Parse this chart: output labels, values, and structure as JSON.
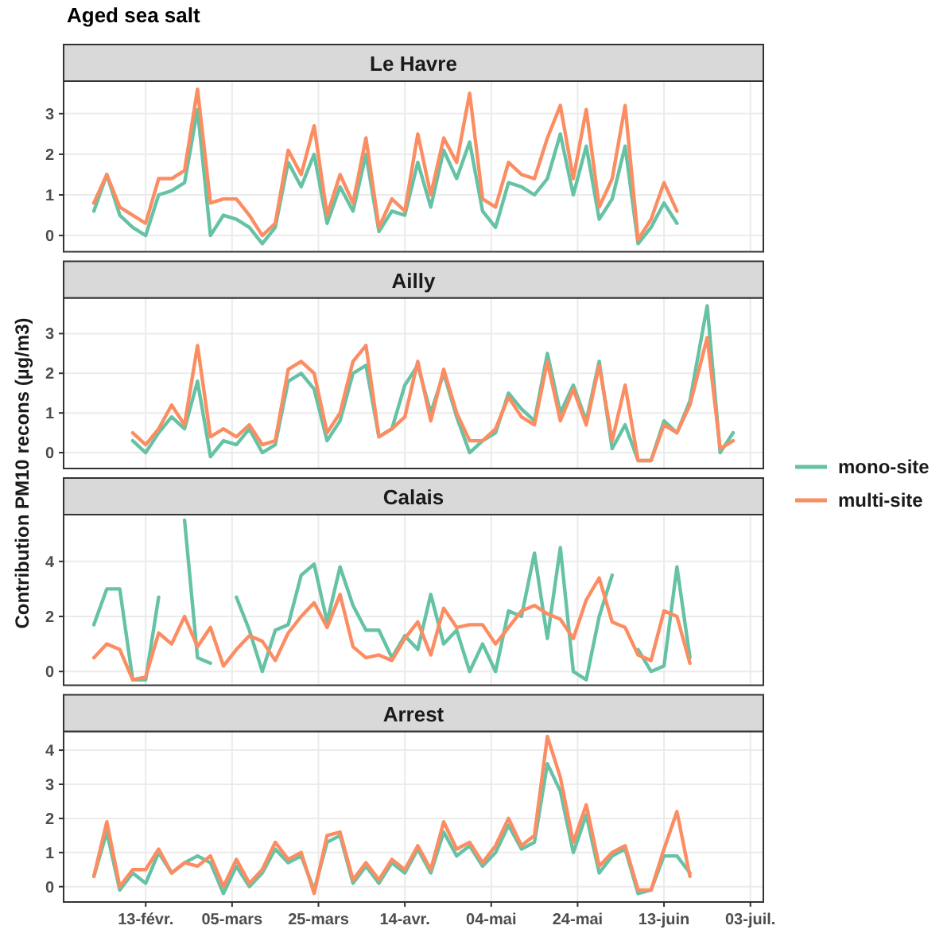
{
  "chart_data": [
    {
      "type": "line",
      "title": "Le Havre",
      "annotations": [
        "Aged sea salt"
      ],
      "tick_labels": "y",
      "grid": true,
      "x": [
        "--02-01",
        "--02-04",
        "--02-07",
        "--02-10",
        "--02-13",
        "--02-16",
        "--02-19",
        "--02-22",
        "--02-25",
        "--02-28",
        "--03-03",
        "--03-06",
        "--03-09",
        "--03-12",
        "--03-15",
        "--03-18",
        "--03-21",
        "--03-24",
        "--03-27",
        "--03-30",
        "--04-02",
        "--04-05",
        "--04-08",
        "--04-11",
        "--04-14",
        "--04-17",
        "--04-20",
        "--04-23",
        "--04-26",
        "--04-29",
        "--05-02",
        "--05-05",
        "--05-08",
        "--05-11",
        "--05-14",
        "--05-17",
        "--05-20",
        "--05-23",
        "--05-26",
        "--05-29",
        "--06-01",
        "--06-04",
        "--06-07",
        "--06-10",
        "--06-13",
        "--06-16"
      ],
      "xlim": [
        "--01-25",
        "--07-06"
      ],
      "xticks": [
        {
          "value": "--02-13",
          "label": null
        },
        {
          "value": "--03-05",
          "label": null
        },
        {
          "value": "--03-25",
          "label": null
        },
        {
          "value": "--04-14",
          "label": null
        },
        {
          "value": "--05-04",
          "label": null
        },
        {
          "value": "--05-24",
          "label": null
        },
        {
          "value": "--06-13",
          "label": null
        },
        {
          "value": "--07-03",
          "label": null
        }
      ],
      "ylim": [
        -0.4,
        3.8
      ],
      "yticks": [
        0,
        1,
        2,
        3
      ],
      "series": [
        {
          "color": "#66c2a5",
          "values": [
            0.6,
            1.5,
            0.5,
            0.2,
            0.0,
            1.0,
            1.1,
            1.3,
            3.1,
            0.0,
            0.5,
            0.4,
            0.2,
            -0.2,
            0.2,
            1.8,
            1.2,
            2.0,
            0.3,
            1.2,
            0.6,
            2.0,
            0.1,
            0.6,
            0.5,
            1.8,
            0.7,
            2.1,
            1.4,
            2.3,
            0.6,
            0.2,
            1.3,
            1.2,
            1.0,
            1.4,
            2.5,
            1.0,
            2.2,
            0.4,
            0.9,
            2.2,
            -0.2,
            0.2,
            0.8,
            0.3
          ]
        },
        {
          "color": "#fc8d62",
          "values": [
            0.8,
            1.5,
            0.7,
            0.5,
            0.3,
            1.4,
            1.4,
            1.6,
            3.6,
            0.8,
            0.9,
            0.9,
            0.5,
            0.0,
            0.3,
            2.1,
            1.5,
            2.7,
            0.5,
            1.5,
            0.8,
            2.4,
            0.2,
            0.9,
            0.6,
            2.5,
            1.0,
            2.4,
            1.8,
            3.5,
            0.9,
            0.7,
            1.8,
            1.5,
            1.4,
            2.4,
            3.2,
            1.4,
            3.1,
            0.7,
            1.4,
            3.2,
            -0.1,
            0.4,
            1.3,
            0.6
          ]
        }
      ]
    },
    {
      "type": "line",
      "title": "Ailly",
      "tick_labels": "y",
      "grid": true,
      "x": [
        "--02-10",
        "--02-13",
        "--02-16",
        "--02-19",
        "--02-22",
        "--02-25",
        "--02-28",
        "--03-03",
        "--03-06",
        "--03-09",
        "--03-12",
        "--03-15",
        "--03-18",
        "--03-21",
        "--03-24",
        "--03-27",
        "--03-30",
        "--04-02",
        "--04-05",
        "--04-08",
        "--04-11",
        "--04-14",
        "--04-17",
        "--04-20",
        "--04-23",
        "--04-26",
        "--04-29",
        "--05-02",
        "--05-05",
        "--05-08",
        "--05-11",
        "--05-14",
        "--05-17",
        "--05-20",
        "--05-23",
        "--05-26",
        "--05-29",
        "--06-01",
        "--06-04",
        "--06-07",
        "--06-10",
        "--06-13",
        "--06-16",
        "--06-19",
        "--06-23",
        "--06-26",
        "--06-29"
      ],
      "xlim": [
        "--01-25",
        "--07-06"
      ],
      "xticks": [
        {
          "value": "--02-13",
          "label": null
        },
        {
          "value": "--03-05",
          "label": null
        },
        {
          "value": "--03-25",
          "label": null
        },
        {
          "value": "--04-14",
          "label": null
        },
        {
          "value": "--05-04",
          "label": null
        },
        {
          "value": "--05-24",
          "label": null
        },
        {
          "value": "--06-13",
          "label": null
        },
        {
          "value": "--07-03",
          "label": null
        }
      ],
      "ylim": [
        -0.4,
        3.9
      ],
      "yticks": [
        0,
        1,
        2,
        3
      ],
      "series": [
        {
          "color": "#66c2a5",
          "values": [
            0.3,
            0.0,
            0.5,
            0.9,
            0.6,
            1.8,
            -0.1,
            0.3,
            0.2,
            0.6,
            0.0,
            0.2,
            1.8,
            2.0,
            1.6,
            0.3,
            0.8,
            2.0,
            2.2,
            0.4,
            0.6,
            1.7,
            2.2,
            1.0,
            2.0,
            0.9,
            0.0,
            0.3,
            0.5,
            1.5,
            1.1,
            0.8,
            2.5,
            1.0,
            1.7,
            0.8,
            2.3,
            0.1,
            0.7,
            -0.2,
            -0.2,
            0.8,
            0.5,
            1.3,
            3.7,
            0.0,
            0.5
          ]
        },
        {
          "color": "#fc8d62",
          "values": [
            0.5,
            0.2,
            0.6,
            1.2,
            0.7,
            2.7,
            0.4,
            0.6,
            0.4,
            0.7,
            0.2,
            0.3,
            2.1,
            2.3,
            2.0,
            0.5,
            1.0,
            2.3,
            2.7,
            0.4,
            0.6,
            0.9,
            2.3,
            0.8,
            2.1,
            1.0,
            0.3,
            0.3,
            0.6,
            1.4,
            0.9,
            0.7,
            2.3,
            0.8,
            1.6,
            0.7,
            2.2,
            0.3,
            1.7,
            -0.2,
            -0.2,
            0.7,
            0.5,
            1.2,
            2.9,
            0.1,
            0.3
          ]
        }
      ]
    },
    {
      "type": "line",
      "title": "Calais",
      "ylabel": "Contribution PM10 recons (µg/m3)",
      "tick_labels": "y",
      "grid": true,
      "legend": "right",
      "x": [
        "--02-01",
        "--02-04",
        "--02-07",
        "--02-10",
        "--02-13",
        "--02-16",
        "--02-19",
        "--02-22",
        "--02-25",
        "--02-28",
        "--03-03",
        "--03-06",
        "--03-09",
        "--03-12",
        "--03-15",
        "--03-18",
        "--03-21",
        "--03-24",
        "--03-27",
        "--03-30",
        "--04-02",
        "--04-05",
        "--04-08",
        "--04-11",
        "--04-14",
        "--04-17",
        "--04-20",
        "--04-23",
        "--04-26",
        "--04-29",
        "--05-02",
        "--05-05",
        "--05-08",
        "--05-11",
        "--05-14",
        "--05-17",
        "--05-20",
        "--05-23",
        "--05-26",
        "--05-29",
        "--06-01",
        "--06-04",
        "--06-07",
        "--06-10",
        "--06-13",
        "--06-16",
        "--06-19"
      ],
      "xlim": [
        "--01-25",
        "--07-06"
      ],
      "xticks": [
        {
          "value": "--02-13",
          "label": null
        },
        {
          "value": "--03-05",
          "label": null
        },
        {
          "value": "--03-25",
          "label": null
        },
        {
          "value": "--04-14",
          "label": null
        },
        {
          "value": "--05-04",
          "label": null
        },
        {
          "value": "--05-24",
          "label": null
        },
        {
          "value": "--06-13",
          "label": null
        },
        {
          "value": "--07-03",
          "label": null
        }
      ],
      "ylim": [
        -0.5,
        5.7
      ],
      "yticks": [
        0,
        2,
        4
      ],
      "series": [
        {
          "name": "mono-site",
          "color": "#66c2a5",
          "values": [
            1.7,
            3.0,
            3.0,
            -0.3,
            -0.3,
            2.7,
            null,
            5.5,
            0.5,
            0.3,
            null,
            2.7,
            1.5,
            0.0,
            1.5,
            1.7,
            3.5,
            3.9,
            1.8,
            3.8,
            2.4,
            1.5,
            1.5,
            0.5,
            1.3,
            0.8,
            2.8,
            1.0,
            1.5,
            0.0,
            1.0,
            0.0,
            2.2,
            2.0,
            4.3,
            1.2,
            4.5,
            0.0,
            -0.3,
            2.0,
            3.5,
            null,
            0.8,
            0.0,
            0.2,
            3.8,
            0.5
          ]
        },
        {
          "name": "multi-site",
          "color": "#fc8d62",
          "values": [
            0.5,
            1.0,
            0.8,
            -0.3,
            -0.2,
            1.4,
            1.0,
            2.0,
            0.9,
            1.6,
            0.2,
            0.8,
            1.3,
            1.1,
            0.4,
            1.4,
            2.0,
            2.5,
            1.6,
            2.8,
            0.9,
            0.5,
            0.6,
            0.4,
            1.2,
            1.8,
            0.6,
            2.3,
            1.6,
            1.7,
            1.7,
            1.0,
            1.6,
            2.2,
            2.4,
            2.1,
            1.9,
            1.2,
            2.6,
            3.4,
            1.8,
            1.6,
            0.6,
            0.4,
            2.2,
            2.0,
            0.3
          ]
        }
      ]
    },
    {
      "type": "line",
      "title": "Arrest",
      "grid": true,
      "x": [
        "--02-01",
        "--02-04",
        "--02-07",
        "--02-10",
        "--02-13",
        "--02-16",
        "--02-19",
        "--02-22",
        "--02-25",
        "--02-28",
        "--03-03",
        "--03-06",
        "--03-09",
        "--03-12",
        "--03-15",
        "--03-18",
        "--03-21",
        "--03-24",
        "--03-27",
        "--03-30",
        "--04-02",
        "--04-05",
        "--04-08",
        "--04-11",
        "--04-14",
        "--04-17",
        "--04-20",
        "--04-23",
        "--04-26",
        "--04-29",
        "--05-02",
        "--05-05",
        "--05-08",
        "--05-11",
        "--05-14",
        "--05-17",
        "--05-20",
        "--05-23",
        "--05-26",
        "--05-29",
        "--06-01",
        "--06-04",
        "--06-07",
        "--06-10",
        "--06-13",
        "--06-16",
        "--06-19"
      ],
      "xlim": [
        "--01-25",
        "--07-06"
      ],
      "xticks": [
        {
          "value": "--02-13",
          "label": "13-févr."
        },
        {
          "value": "--03-05",
          "label": "05-mars"
        },
        {
          "value": "--03-25",
          "label": "25-mars"
        },
        {
          "value": "--04-14",
          "label": "14-avr."
        },
        {
          "value": "--05-04",
          "label": "04-mai"
        },
        {
          "value": "--05-24",
          "label": "24-mai"
        },
        {
          "value": "--06-13",
          "label": "13-juin"
        },
        {
          "value": "--07-03",
          "label": "03-juil."
        }
      ],
      "ylim": [
        -0.45,
        4.55
      ],
      "yticks": [
        0,
        1,
        2,
        3,
        4
      ],
      "series": [
        {
          "color": "#66c2a5",
          "values": [
            0.3,
            1.6,
            -0.1,
            0.4,
            0.1,
            1.0,
            0.4,
            0.7,
            0.9,
            0.7,
            -0.2,
            0.6,
            0.0,
            0.4,
            1.1,
            0.7,
            0.9,
            -0.1,
            1.3,
            1.5,
            0.1,
            0.6,
            0.1,
            0.7,
            0.4,
            1.1,
            0.4,
            1.6,
            0.9,
            1.2,
            0.6,
            1.0,
            1.8,
            1.1,
            1.3,
            3.6,
            2.8,
            1.0,
            2.1,
            0.4,
            0.9,
            1.1,
            -0.2,
            -0.1,
            0.9,
            0.9,
            0.4
          ]
        },
        {
          "color": "#fc8d62",
          "values": [
            0.3,
            1.9,
            0.0,
            0.5,
            0.5,
            1.1,
            0.4,
            0.7,
            0.6,
            0.9,
            0.0,
            0.8,
            0.1,
            0.5,
            1.3,
            0.8,
            1.0,
            -0.2,
            1.5,
            1.6,
            0.2,
            0.7,
            0.2,
            0.8,
            0.5,
            1.2,
            0.5,
            1.9,
            1.1,
            1.3,
            0.7,
            1.2,
            2.0,
            1.2,
            1.5,
            4.4,
            3.2,
            1.3,
            2.4,
            0.6,
            1.0,
            1.2,
            -0.1,
            -0.1,
            1.1,
            2.2,
            0.3
          ]
        }
      ]
    }
  ]
}
